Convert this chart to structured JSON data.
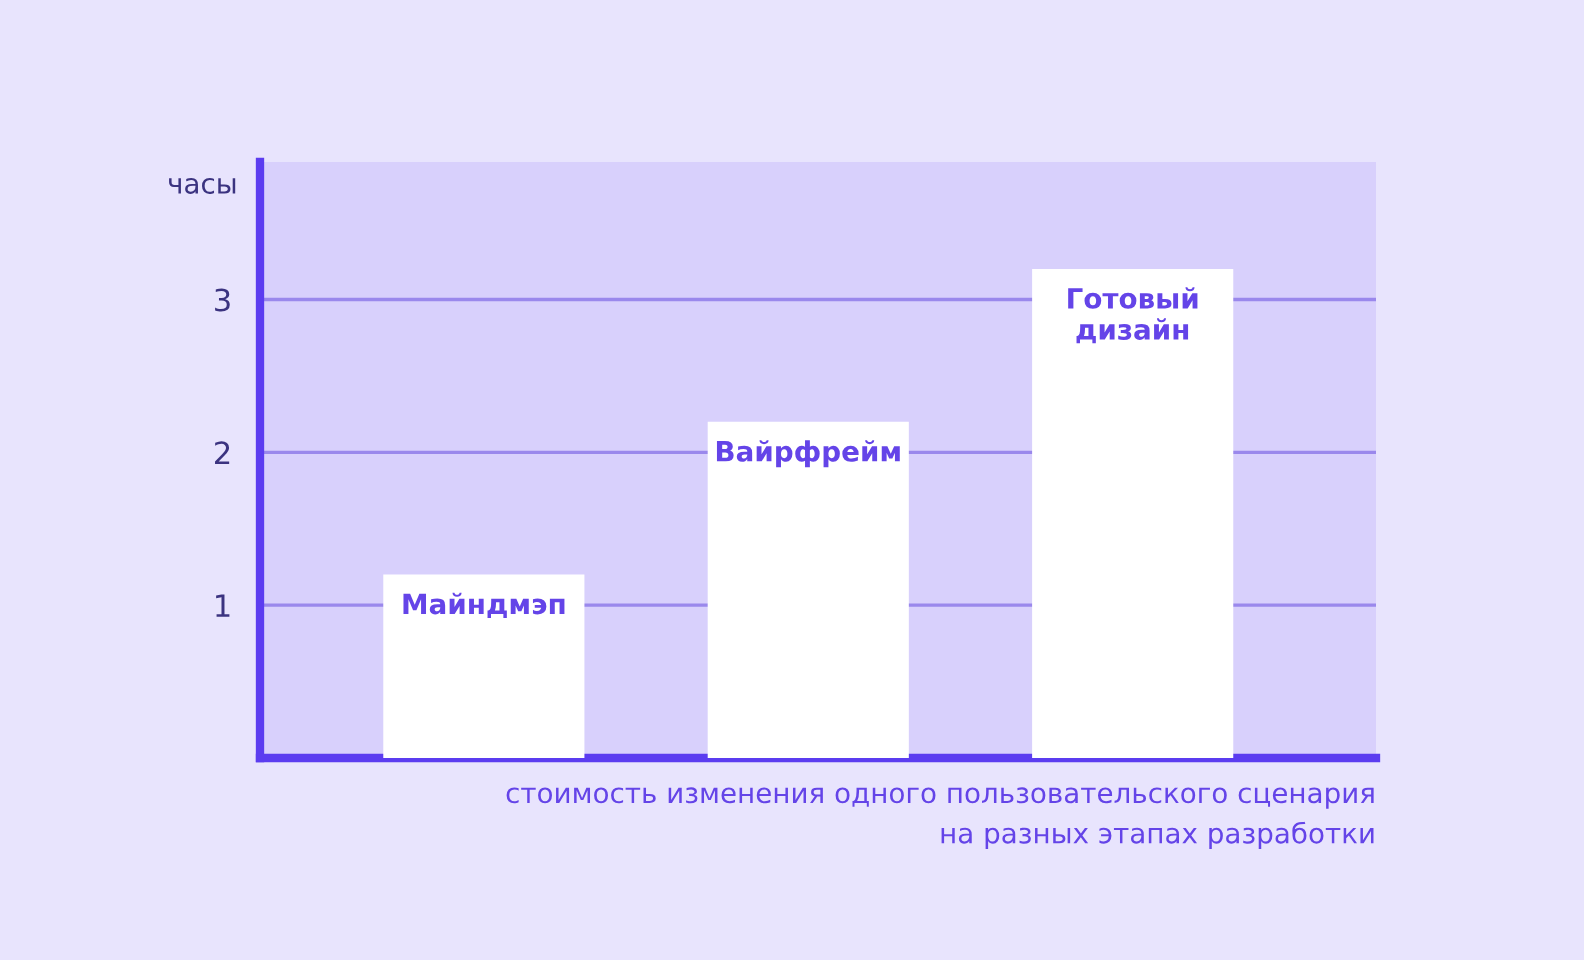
{
  "chart_data": {
    "type": "bar",
    "categories": [
      "Майндмэп",
      "Вайрфрейм",
      "Готовый\nдизайн"
    ],
    "values": [
      1.2,
      2.2,
      3.2
    ],
    "color": "#ffffff",
    "ylabel": "часы",
    "xlabel": "стоимость изменения одного пользовательского сценария\nна разных этапах разработки",
    "ylim": [
      0,
      3.9
    ],
    "yticks": [
      1,
      2,
      3
    ],
    "grid": "y",
    "tick_labels": "y"
  }
}
